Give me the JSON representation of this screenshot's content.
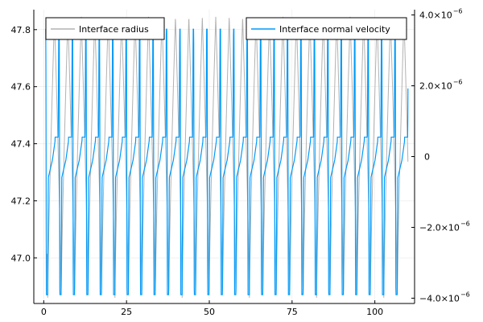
{
  "chart_data": {
    "type": "line",
    "title": "",
    "xlabel": "",
    "ylabel_left": "",
    "ylabel_right": "",
    "grid": true,
    "xlim": [
      -3,
      112
    ],
    "ylim_left": [
      46.84,
      47.87
    ],
    "ylim_right": [
      -4.15e-06,
      4.15e-06
    ],
    "x_ticks": [
      0,
      25,
      50,
      75,
      100
    ],
    "x_tick_labels": [
      "0",
      "25",
      "50",
      "75",
      "100"
    ],
    "y_left_ticks": [
      47.0,
      47.2,
      47.4,
      47.6,
      47.8
    ],
    "y_left_tick_labels": [
      "47.0",
      "47.2",
      "47.4",
      "47.6",
      "47.8"
    ],
    "y_right_ticks": [
      -4e-06,
      -2e-06,
      0,
      2e-06,
      4e-06
    ],
    "y_right_tick_labels": [
      {
        "mantissa": "−4.0×10",
        "exp": "−6"
      },
      {
        "mantissa": "−2.0×10",
        "exp": "−6"
      },
      {
        "mantissa": "0",
        "exp": ""
      },
      {
        "mantissa": "2.0×10",
        "exp": "−6"
      },
      {
        "mantissa": "4.0×10",
        "exp": "−6"
      }
    ],
    "legend_left": {
      "placement": "top-left"
    },
    "legend_right": {
      "placement": "top-right"
    },
    "series": [
      {
        "name": "Interface radius",
        "axis": "left",
        "color": "#b2b2b2",
        "x_range": [
          1,
          110
        ],
        "oscillation_period": 4.06,
        "min_value": 46.86,
        "max_value": 47.845
      },
      {
        "name": "Interface normal velocity",
        "axis": "right",
        "color": "#009af9",
        "x_range": [
          0.5,
          110
        ],
        "oscillation_period": 4.06,
        "typical_max": 3.6e-06,
        "typical_min": -3.9e-06,
        "plateau_value": 5.5e-07
      }
    ]
  }
}
